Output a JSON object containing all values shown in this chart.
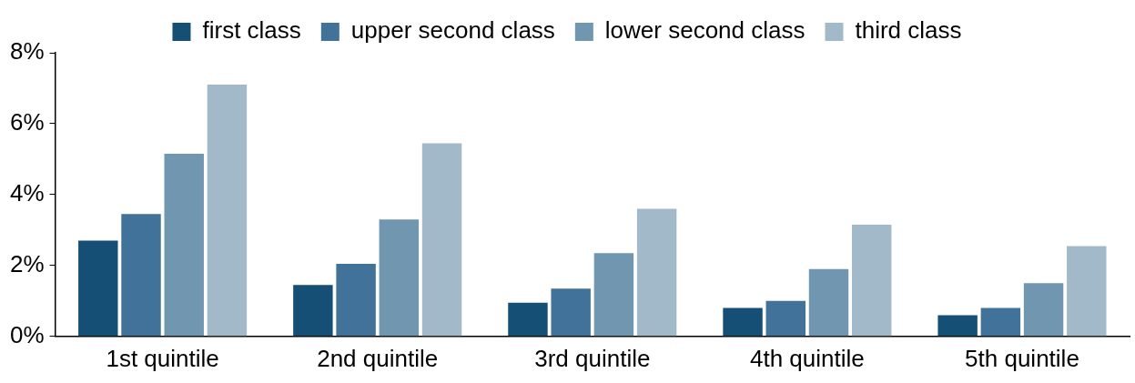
{
  "chart_data": {
    "type": "bar",
    "categories": [
      "1st quintile",
      "2nd quintile",
      "3rd quintile",
      "4th quintile",
      "5th quintile"
    ],
    "series": [
      {
        "name": "first class",
        "color": "#154f75",
        "values": [
          2.7,
          1.45,
          0.95,
          0.8,
          0.6
        ]
      },
      {
        "name": "upper second class",
        "color": "#41739a",
        "values": [
          3.45,
          2.05,
          1.35,
          1.0,
          0.8
        ]
      },
      {
        "name": "lower second class",
        "color": "#7096b0",
        "values": [
          5.15,
          3.3,
          2.35,
          1.9,
          1.5
        ]
      },
      {
        "name": "third class",
        "color": "#a2b9c9",
        "values": [
          7.1,
          5.45,
          3.6,
          3.15,
          2.55
        ]
      }
    ],
    "ylim": [
      0,
      8
    ],
    "yticks": [
      {
        "value": 0,
        "label": "0%"
      },
      {
        "value": 2,
        "label": "2%"
      },
      {
        "value": 4,
        "label": "4%"
      },
      {
        "value": 6,
        "label": "6%"
      },
      {
        "value": 8,
        "label": "8%"
      }
    ],
    "grid": false,
    "legend": "top"
  }
}
